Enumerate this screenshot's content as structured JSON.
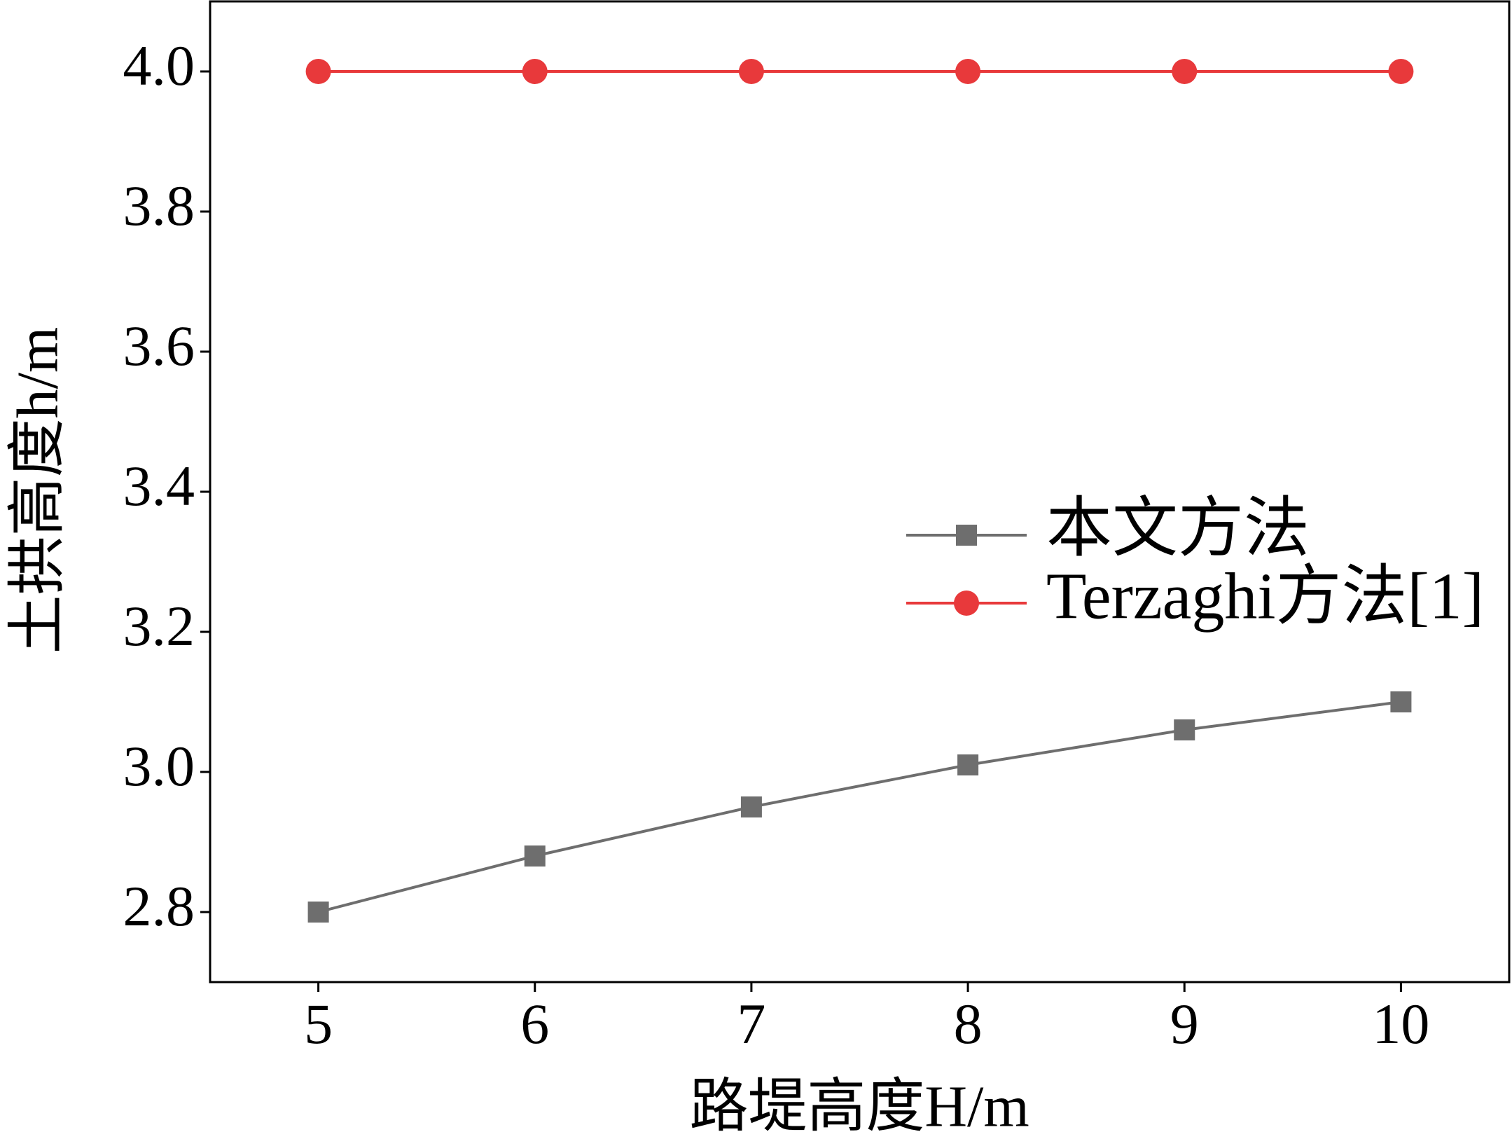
{
  "chart_data": {
    "type": "line",
    "xlabel": "路堤高度H/m",
    "ylabel": "土拱高度h/m",
    "x": [
      5,
      6,
      7,
      8,
      9,
      10
    ],
    "series": [
      {
        "name": "本文方法",
        "color": "#6e6e6e",
        "marker": "square",
        "values": [
          2.8,
          2.88,
          2.95,
          3.01,
          3.06,
          3.1
        ]
      },
      {
        "name": "Terzaghi方法[1]",
        "color": "#e8393b",
        "marker": "circle",
        "values": [
          4.0,
          4.0,
          4.0,
          4.0,
          4.0,
          4.0
        ]
      }
    ],
    "xlim": [
      4.5,
      10.5
    ],
    "xticks": [
      5,
      6,
      7,
      8,
      9,
      10
    ],
    "ylim": [
      2.7,
      4.1
    ],
    "yticks": [
      {
        "value": 2.8,
        "label": "2.8"
      },
      {
        "value": 3.0,
        "label": "3.0"
      },
      {
        "value": 3.2,
        "label": "3.2"
      },
      {
        "value": 3.4,
        "label": "3.4"
      },
      {
        "value": 3.6,
        "label": "3.6"
      },
      {
        "value": 3.8,
        "label": "3.8"
      },
      {
        "value": 4.0,
        "label": "4.0"
      }
    ],
    "grid": false,
    "legend": "right"
  }
}
